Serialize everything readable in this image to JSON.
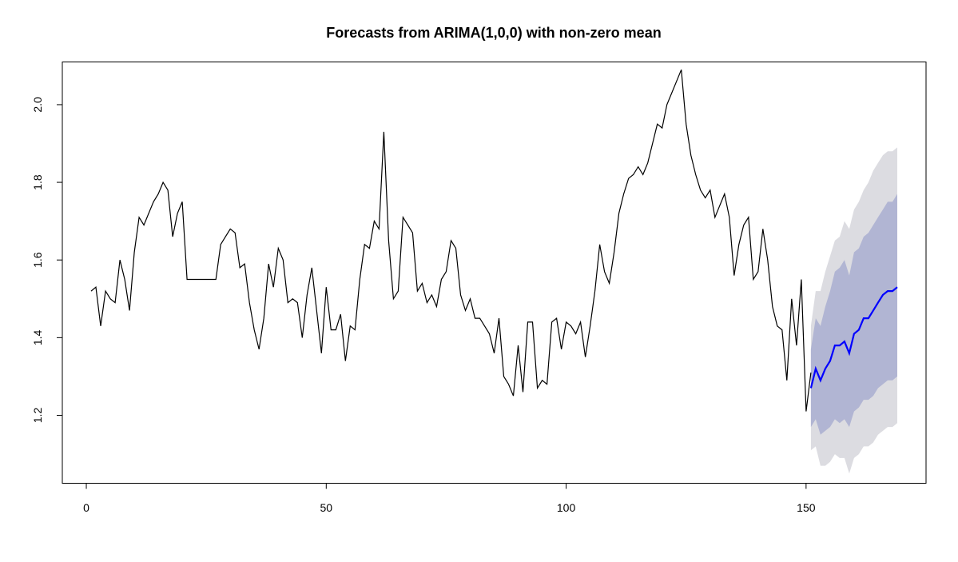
{
  "chart_data": {
    "type": "line",
    "title": "Forecasts from ARIMA(1,0,0) with non-zero mean",
    "xlabel": "",
    "ylabel": "",
    "xlim": [
      -5,
      175
    ],
    "ylim": [
      1.025,
      2.11
    ],
    "x_ticks": [
      0,
      50,
      100,
      150
    ],
    "x_tick_labels": [
      "0",
      "50",
      "100",
      "150"
    ],
    "y_ticks": [
      1.2,
      1.4,
      1.6,
      1.8,
      2.0
    ],
    "y_tick_labels": [
      "1.2",
      "1.4",
      "1.6",
      "1.8",
      "2.0"
    ],
    "grid": false,
    "legend": "none",
    "colors": {
      "observed": "#000000",
      "forecast": "#0000ff",
      "band_80": "#b1b5d3",
      "band_95": "#dcdce1"
    },
    "observed": {
      "x_start": 1,
      "values": [
        1.52,
        1.53,
        1.43,
        1.52,
        1.5,
        1.49,
        1.6,
        1.55,
        1.47,
        1.62,
        1.71,
        1.69,
        1.72,
        1.75,
        1.77,
        1.8,
        1.78,
        1.66,
        1.72,
        1.75,
        1.55,
        1.55,
        1.55,
        1.55,
        1.55,
        1.55,
        1.55,
        1.64,
        1.66,
        1.68,
        1.67,
        1.58,
        1.59,
        1.49,
        1.42,
        1.37,
        1.45,
        1.59,
        1.53,
        1.63,
        1.6,
        1.49,
        1.5,
        1.49,
        1.4,
        1.51,
        1.58,
        1.47,
        1.36,
        1.53,
        1.42,
        1.42,
        1.46,
        1.34,
        1.43,
        1.42,
        1.55,
        1.64,
        1.63,
        1.7,
        1.68,
        1.93,
        1.65,
        1.5,
        1.52,
        1.71,
        1.69,
        1.67,
        1.52,
        1.54,
        1.49,
        1.51,
        1.48,
        1.55,
        1.57,
        1.65,
        1.63,
        1.51,
        1.47,
        1.5,
        1.45,
        1.45,
        1.43,
        1.41,
        1.36,
        1.45,
        1.3,
        1.28,
        1.25,
        1.38,
        1.26,
        1.44,
        1.44,
        1.27,
        1.29,
        1.28,
        1.44,
        1.45,
        1.37,
        1.44,
        1.43,
        1.41,
        1.44,
        1.35,
        1.43,
        1.52,
        1.64,
        1.57,
        1.54,
        1.62,
        1.72,
        1.77,
        1.81,
        1.82,
        1.84,
        1.82,
        1.85,
        1.9,
        1.95,
        1.94,
        2.0,
        2.03,
        2.06,
        2.09,
        1.95,
        1.87,
        1.82,
        1.78,
        1.76,
        1.78,
        1.71,
        1.74,
        1.77,
        1.71,
        1.56,
        1.64,
        1.69,
        1.71,
        1.55,
        1.57,
        1.68,
        1.6,
        1.48,
        1.43,
        1.42,
        1.29,
        1.5,
        1.38,
        1.55,
        1.21,
        1.31
      ]
    },
    "forecast": {
      "x_start": 151,
      "mean": [
        1.27,
        1.32,
        1.29,
        1.32,
        1.34,
        1.38,
        1.38,
        1.39,
        1.36,
        1.41,
        1.42,
        1.45,
        1.45,
        1.47,
        1.49,
        1.51,
        1.52,
        1.52,
        1.53
      ],
      "lo80": [
        1.17,
        1.19,
        1.15,
        1.16,
        1.17,
        1.19,
        1.18,
        1.19,
        1.17,
        1.21,
        1.22,
        1.24,
        1.24,
        1.25,
        1.27,
        1.28,
        1.29,
        1.29,
        1.3
      ],
      "hi80": [
        1.37,
        1.45,
        1.43,
        1.48,
        1.52,
        1.57,
        1.58,
        1.6,
        1.56,
        1.62,
        1.63,
        1.66,
        1.67,
        1.69,
        1.71,
        1.73,
        1.75,
        1.75,
        1.77
      ],
      "lo95": [
        1.11,
        1.12,
        1.07,
        1.07,
        1.08,
        1.1,
        1.09,
        1.09,
        1.05,
        1.09,
        1.1,
        1.12,
        1.12,
        1.13,
        1.15,
        1.16,
        1.17,
        1.17,
        1.18
      ],
      "hi95": [
        1.43,
        1.52,
        1.52,
        1.57,
        1.61,
        1.65,
        1.66,
        1.7,
        1.68,
        1.73,
        1.75,
        1.78,
        1.8,
        1.83,
        1.85,
        1.87,
        1.88,
        1.88,
        1.89
      ]
    }
  }
}
